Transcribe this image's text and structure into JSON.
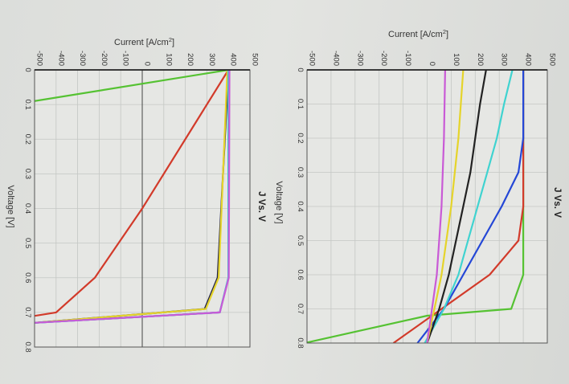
{
  "page": {
    "description": "Photo of printed page with two J vs V plots, rotated 90 degrees clockwise"
  },
  "chart_data": [
    {
      "type": "line",
      "title": "J Vs. V",
      "xlabel": "Voltage [V]",
      "ylabel": "Current [A/cm2]",
      "xlim": [
        0,
        0.8
      ],
      "ylim": [
        -500,
        500
      ],
      "x_ticks": [
        "0",
        "0.1",
        "0.2",
        "0.3",
        "0.4",
        "0.5",
        "0.6",
        "0.7",
        "0.8"
      ],
      "y_ticks": [
        "-500",
        "-400",
        "-300",
        "-200",
        "-100",
        "0",
        "100",
        "200",
        "300",
        "400",
        "500"
      ],
      "grid": true,
      "legend": null,
      "series": [
        {
          "name": "green",
          "color": "#55c232",
          "x": [
            0,
            0.4,
            0.6,
            0.7,
            0.72,
            0.8
          ],
          "y": [
            400,
            400,
            400,
            350,
            0,
            -510
          ]
        },
        {
          "name": "red",
          "color": "#d23a2a",
          "x": [
            0,
            0.2,
            0.4,
            0.5,
            0.6,
            0.7,
            0.8
          ],
          "y": [
            400,
            400,
            400,
            380,
            260,
            60,
            -140
          ]
        },
        {
          "name": "blue",
          "color": "#2447d6",
          "x": [
            0,
            0.2,
            0.3,
            0.4,
            0.5,
            0.6,
            0.7,
            0.8
          ],
          "y": [
            400,
            400,
            380,
            310,
            230,
            150,
            70,
            -40
          ]
        },
        {
          "name": "cyan",
          "color": "#3fd3d0",
          "x": [
            0,
            0.1,
            0.2,
            0.3,
            0.4,
            0.5,
            0.6,
            0.7,
            0.8
          ],
          "y": [
            355,
            320,
            290,
            250,
            210,
            170,
            130,
            70,
            -10
          ]
        },
        {
          "name": "black",
          "color": "#222222",
          "x": [
            0,
            0.1,
            0.2,
            0.3,
            0.4,
            0.5,
            0.6,
            0.7,
            0.8
          ],
          "y": [
            245,
            220,
            200,
            180,
            150,
            120,
            90,
            50,
            0
          ]
        },
        {
          "name": "yellow",
          "color": "#e5d42a",
          "x": [
            0,
            0.1,
            0.2,
            0.3,
            0.4,
            0.5,
            0.6,
            0.7,
            0.8
          ],
          "y": [
            150,
            140,
            130,
            115,
            100,
            80,
            60,
            30,
            0
          ]
        },
        {
          "name": "magenta",
          "color": "#c95ad6",
          "x": [
            0,
            0.2,
            0.4,
            0.6,
            0.8
          ],
          "y": [
            75,
            70,
            60,
            40,
            0
          ]
        }
      ]
    },
    {
      "type": "line",
      "title": "J Vs. V",
      "xlabel": "Voltage [V]",
      "ylabel": "Current [A/cm2]",
      "xlim": [
        0,
        0.8
      ],
      "ylim": [
        -500,
        500
      ],
      "x_ticks": [
        "0",
        "0.1",
        "0.2",
        "0.3",
        "0.4",
        "0.5",
        "0.6",
        "0.7",
        "0.8"
      ],
      "y_ticks": [
        "-500",
        "-400",
        "-300",
        "-200",
        "-100",
        "0",
        "100",
        "200",
        "300",
        "400",
        "500"
      ],
      "grid": true,
      "legend": null,
      "series": [
        {
          "name": "green",
          "color": "#55c232",
          "x": [
            0,
            0.01,
            0.09
          ],
          "y": [
            400,
            300,
            -500
          ]
        },
        {
          "name": "red",
          "color": "#d23a2a",
          "x": [
            0,
            0.4,
            0.6,
            0.7,
            0.71
          ],
          "y": [
            400,
            0,
            -220,
            -400,
            -500
          ]
        },
        {
          "name": "black",
          "color": "#222244",
          "x": [
            0,
            0.6,
            0.69,
            0.73
          ],
          "y": [
            400,
            350,
            290,
            -500
          ]
        },
        {
          "name": "yellow",
          "color": "#e5d42a",
          "x": [
            0,
            0.6,
            0.69,
            0.73
          ],
          "y": [
            395,
            355,
            295,
            -500
          ]
        },
        {
          "name": "blue",
          "color": "#2447d6",
          "x": [
            0,
            0.6,
            0.7,
            0.73
          ],
          "y": [
            400,
            400,
            360,
            -500
          ]
        },
        {
          "name": "cyan",
          "color": "#3fd3d0",
          "x": [
            0,
            0.6,
            0.7,
            0.73
          ],
          "y": [
            400,
            400,
            360,
            -500
          ]
        },
        {
          "name": "magenta",
          "color": "#c95ad6",
          "x": [
            0,
            0.6,
            0.7,
            0.73
          ],
          "y": [
            405,
            402,
            360,
            -500
          ]
        }
      ]
    }
  ],
  "charts": {
    "right": {
      "title": "J Vs. V",
      "xlabel": "Voltage [V]",
      "ylabel": "Current [A/cm",
      "ylabel_sup": "2",
      "ylabel_end": "]"
    },
    "left": {
      "title": "J Vs. V",
      "xlabel": "Voltage [V]",
      "ylabel": "Current [A/cm",
      "ylabel_sup": "2",
      "ylabel_end": "]"
    }
  }
}
